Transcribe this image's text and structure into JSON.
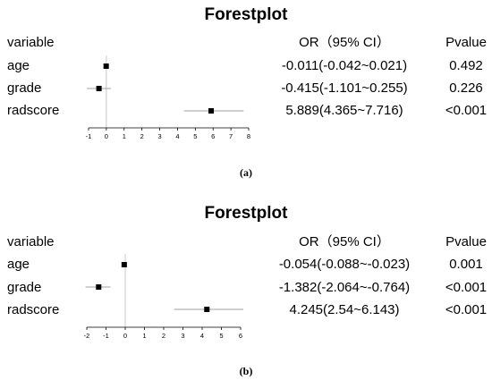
{
  "chart_data": [
    {
      "type": "forest",
      "title": "Forestplot",
      "headers": {
        "variable": "variable",
        "estimate": "OR（95% CI）",
        "pvalue": "Pvalue"
      },
      "rows": [
        {
          "label": "age",
          "estimate": -0.011,
          "lower": -0.042,
          "upper": 0.021,
          "or_text": "-0.011(-0.042~0.021)",
          "p_text": "0.492"
        },
        {
          "label": "grade",
          "estimate": -0.415,
          "lower": -1.101,
          "upper": 0.255,
          "or_text": "-0.415(-1.101~0.255)",
          "p_text": "0.226"
        },
        {
          "label": "radscore",
          "estimate": 5.889,
          "lower": 4.365,
          "upper": 7.716,
          "or_text": "5.889(4.365~7.716)",
          "p_text": "<0.001"
        }
      ],
      "xticks": [
        -1,
        0,
        1,
        2,
        3,
        4,
        5,
        6,
        7,
        8
      ],
      "xlim": [
        -1,
        8
      ],
      "reference_line": 0,
      "caption": "(a)"
    },
    {
      "type": "forest",
      "title": "Forestplot",
      "headers": {
        "variable": "variable",
        "estimate": "OR（95% CI）",
        "pvalue": "Pvalue"
      },
      "rows": [
        {
          "label": "age",
          "estimate": -0.054,
          "lower": -0.088,
          "upper": -0.023,
          "or_text": "-0.054(-0.088~-0.023)",
          "p_text": "0.001"
        },
        {
          "label": "grade",
          "estimate": -1.382,
          "lower": -2.064,
          "upper": -0.764,
          "or_text": "-1.382(-2.064~-0.764)",
          "p_text": "<0.001"
        },
        {
          "label": "radscore",
          "estimate": 4.245,
          "lower": 2.54,
          "upper": 6.143,
          "or_text": "4.245(2.54~6.143)",
          "p_text": "<0.001"
        }
      ],
      "xticks": [
        -2,
        -1,
        0,
        1,
        2,
        3,
        4,
        5,
        6
      ],
      "xlim": [
        -2,
        6
      ],
      "reference_line": 0,
      "caption": "(b)"
    }
  ]
}
